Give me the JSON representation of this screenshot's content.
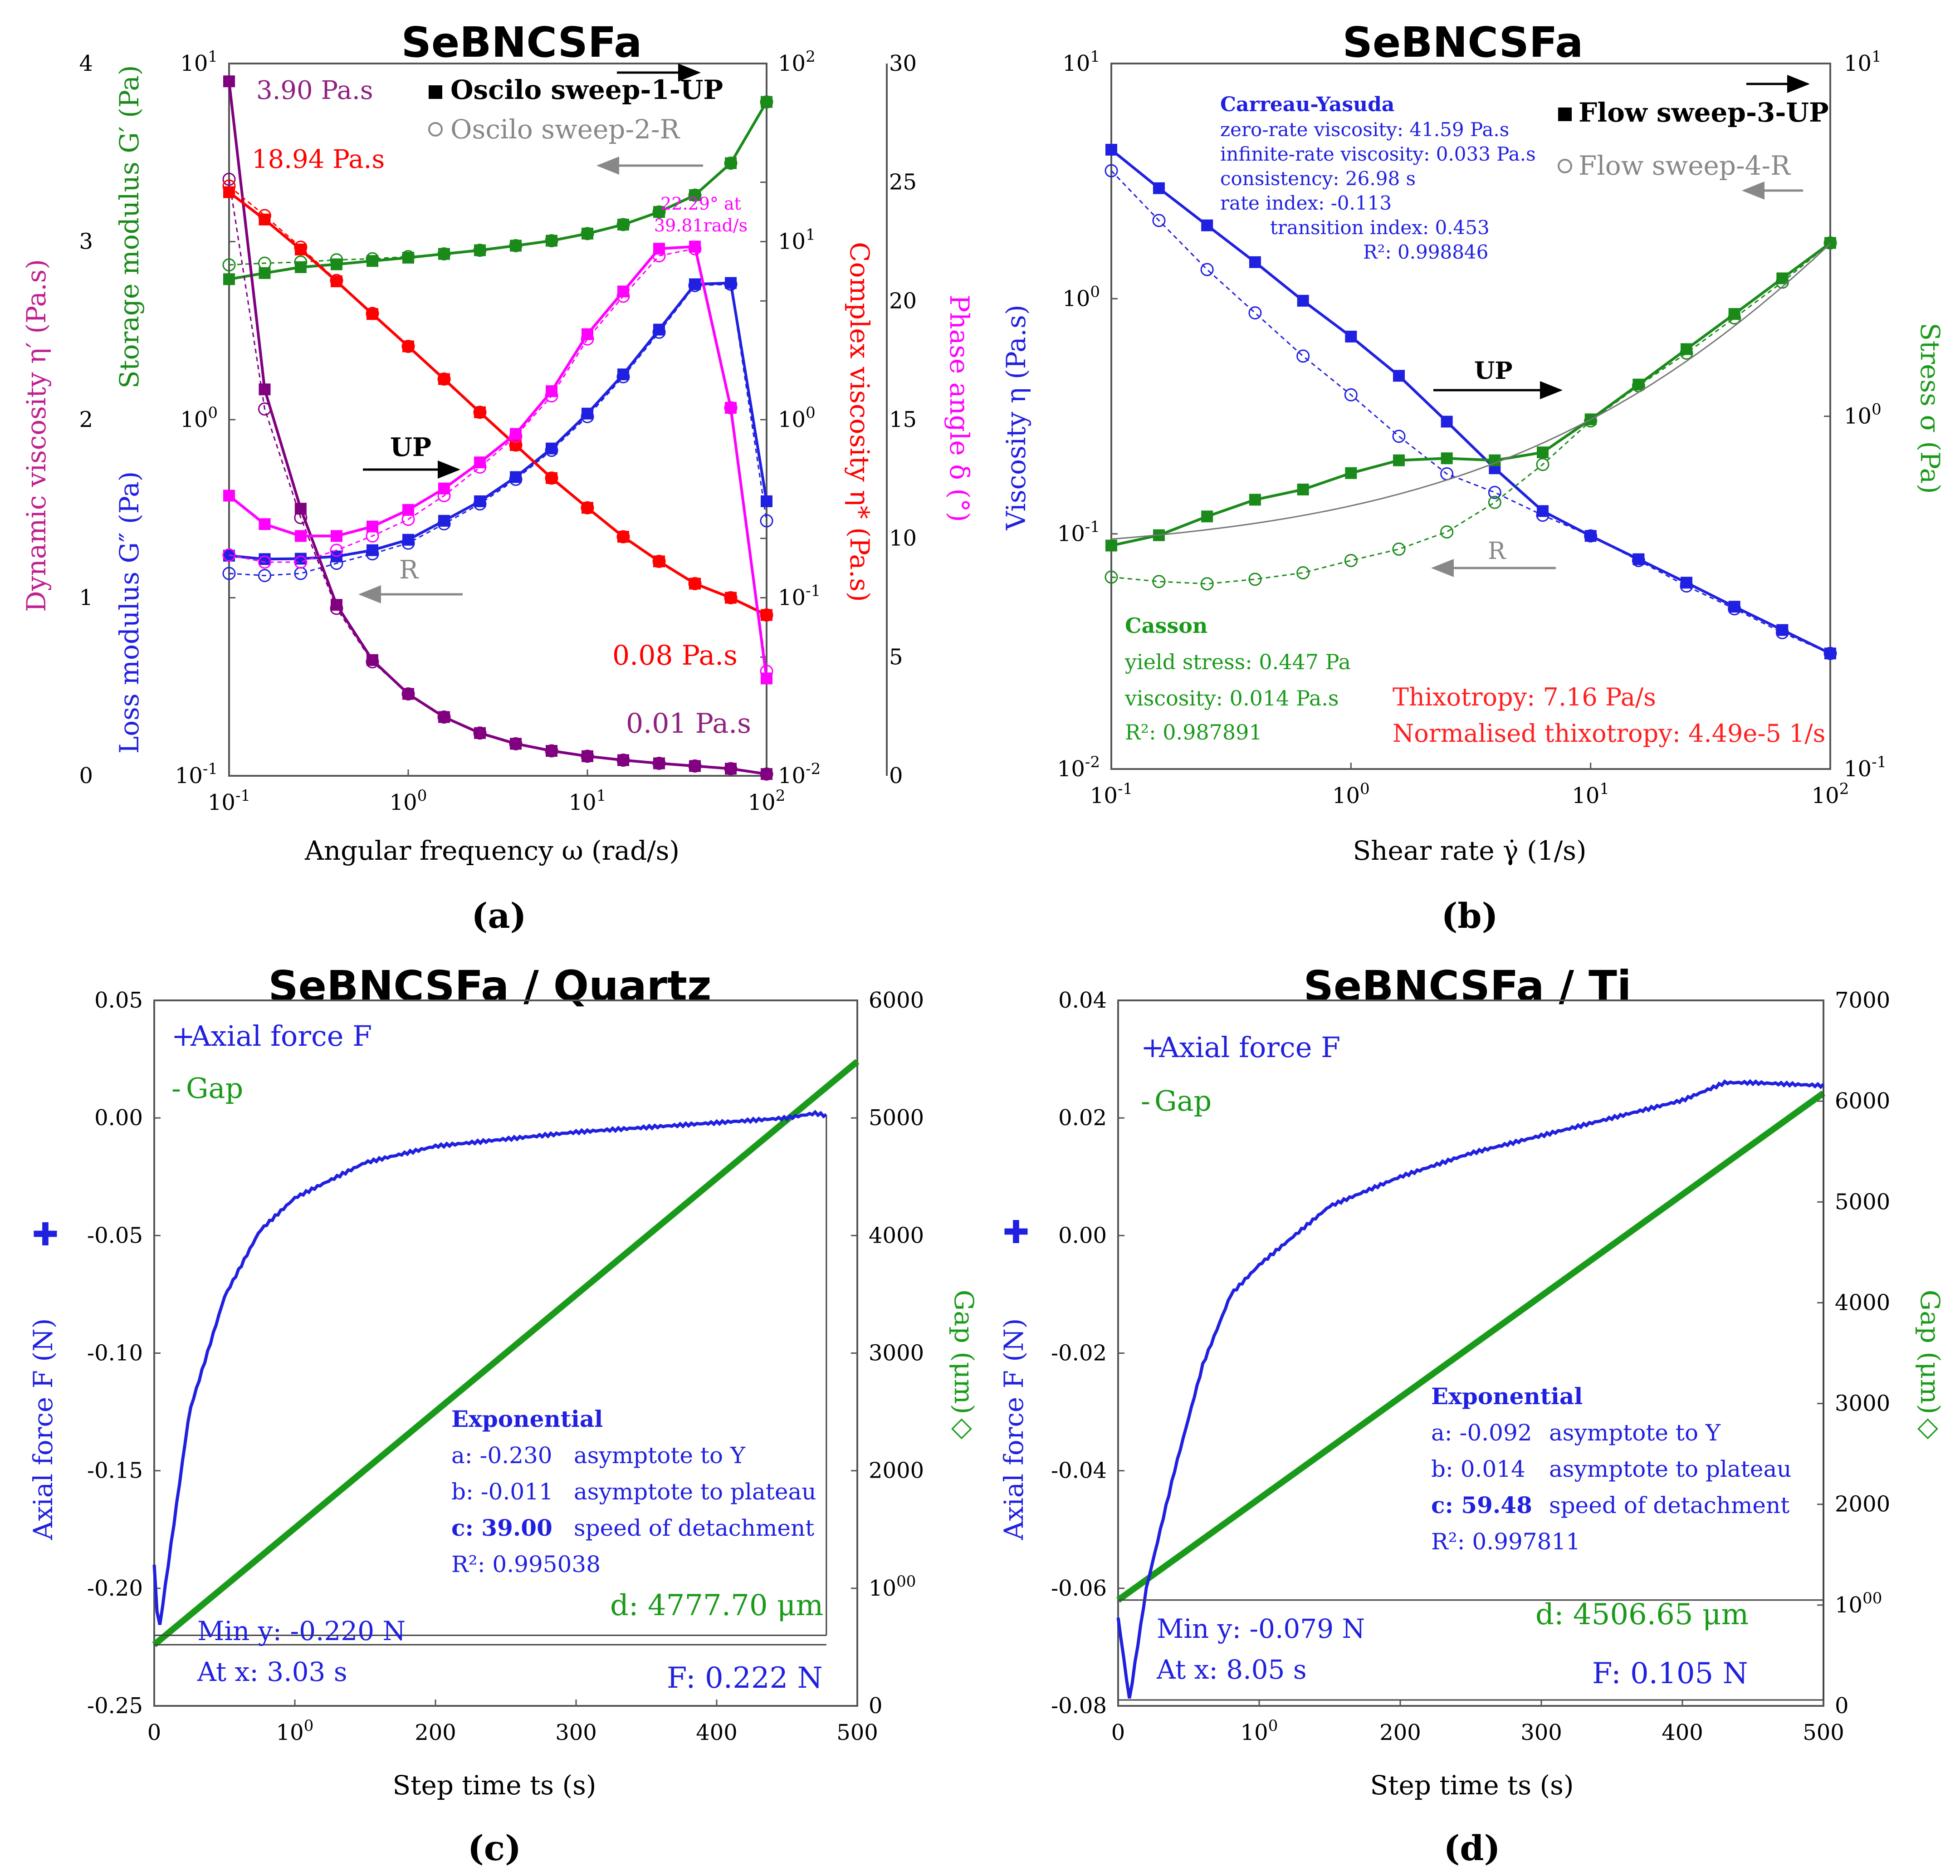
{
  "panels": [
    {
      "title": "SeBNCSFa",
      "caption": "(a)",
      "xlabel": "Angular frequency  ω  (rad/s)",
      "axes": {
        "left_outer": {
          "label": "Dynamic viscosity  η′ (Pa.s)",
          "ticks": [
            "0",
            "1",
            "2",
            "3",
            "4"
          ],
          "color": "#c0208f"
        },
        "left_inner": {
          "label_top": "Storage modulus  G′ (Pa)",
          "label_bottom": "Loss modulus  G″ (Pa)",
          "ticks": [
            "10-1",
            "100",
            "101"
          ]
        },
        "right_inner": {
          "label": "Complex viscosity  η* (Pa.s)",
          "ticks": [
            "10-2",
            "10-1",
            "100",
            "101",
            "102"
          ],
          "color": "#ff0000"
        },
        "right_outer": {
          "label": "Phase angle  δ (°)",
          "ticks": [
            "0",
            "5",
            "10",
            "15",
            "20",
            "25",
            "30"
          ],
          "color": "#ff00ff"
        },
        "x_ticks": [
          "10-1",
          "100",
          "101",
          "102"
        ]
      },
      "legend": [
        {
          "label": "Oscilo sweep-1-UP",
          "color": "#000000"
        },
        {
          "label": "Oscilo sweep-2-R",
          "color": "#888888"
        }
      ],
      "annotations": {
        "eta_prime_max": "3.90 Pa.s",
        "eta_star_max": "18.94 Pa.s",
        "phase_peak_line1": "22.29° at",
        "phase_peak_line2": "39.81rad/s",
        "up_label": "UP",
        "r_label": "R",
        "eta_star_min": "0.08 Pa.s",
        "eta_prime_min": "0.01 Pa.s"
      }
    },
    {
      "title": "SeBNCSFa",
      "caption": "(b)",
      "xlabel": "Shear rate  γ̇  (1/s)",
      "axes": {
        "left": {
          "label": "Viscosity  η  (Pa.s)",
          "ticks": [
            "10-2",
            "10-1",
            "100",
            "101"
          ],
          "color": "#2020e0"
        },
        "right": {
          "label": "Stress  σ  (Pa)",
          "ticks": [
            "10-1",
            "100",
            "101"
          ],
          "color": "#1a9a1a"
        },
        "x_ticks": [
          "10-1",
          "100",
          "101",
          "102"
        ]
      },
      "legend": [
        {
          "label": "Flow sweep-3-UP",
          "color": "#000000"
        },
        {
          "label": "Flow sweep-4-R",
          "color": "#888888"
        }
      ],
      "carreau": {
        "title": "Carreau-Yasuda",
        "lines": [
          "zero-rate viscosity: 41.59 Pa.s",
          "infinite-rate viscosity: 0.033 Pa.s",
          "consistency: 26.98 s",
          "rate index: -0.113",
          "transition index: 0.453",
          "R²: 0.998846"
        ]
      },
      "casson": {
        "title": "Casson",
        "lines": [
          "yield stress: 0.447 Pa",
          "viscosity: 0.014 Pa.s",
          "R²: 0.987891"
        ]
      },
      "thixotropy": [
        "Thixotropy: 7.16 Pa/s",
        "Normalised thixotropy: 4.49e-5 1/s"
      ],
      "up_label": "UP",
      "r_label": "R"
    },
    {
      "title": "SeBNCSFa / Quartz",
      "caption": "(c)",
      "xlabel": "Step time  ts  (s)",
      "axes": {
        "left": {
          "label": "Axial force  F  (N)",
          "ticks": [
            "-0.25",
            "-0.20",
            "-0.15",
            "-0.10",
            "-0.05",
            "0.00",
            "0.05"
          ]
        },
        "right": {
          "label": "Gap  (μm)",
          "ticks": [
            "0",
            "1000",
            "2000",
            "3000",
            "4000",
            "5000",
            "6000"
          ]
        },
        "x_ticks": [
          "0",
          "100",
          "200",
          "300",
          "400",
          "500"
        ]
      },
      "legend": [
        "Axial force F",
        "Gap"
      ],
      "fit": {
        "title": "Exponential",
        "rows": [
          {
            "key": "a: -0.230",
            "desc": "asymptote to Y"
          },
          {
            "key": "b: -0.011",
            "desc": "asymptote to plateau"
          },
          {
            "key": "c: 39.00",
            "desc": "speed of detachment"
          },
          {
            "key": "R²: 0.995038",
            "desc": ""
          }
        ]
      },
      "d_label": "d: 4777.70 μm",
      "min_y": "Min y: -0.220 N",
      "at_x": "At x: 3.03 s",
      "f_label": "F: 0.222 N"
    },
    {
      "title": "SeBNCSFa / Ti",
      "caption": "(d)",
      "xlabel": "Step time  ts  (s)",
      "axes": {
        "left": {
          "label": "Axial force  F  (N)",
          "ticks": [
            "-0.08",
            "-0.06",
            "-0.04",
            "-0.02",
            "0.00",
            "0.02",
            "0.04"
          ]
        },
        "right": {
          "label": "Gap  (μm)",
          "ticks": [
            "0",
            "1000",
            "2000",
            "3000",
            "4000",
            "5000",
            "6000",
            "7000"
          ]
        },
        "x_ticks": [
          "0",
          "100",
          "200",
          "300",
          "400",
          "500"
        ]
      },
      "legend": [
        "Axial force F",
        "Gap"
      ],
      "fit": {
        "title": "Exponential",
        "rows": [
          {
            "key": "a: -0.092",
            "desc": "asymptote to Y"
          },
          {
            "key": "b: 0.014",
            "desc": "asymptote to plateau"
          },
          {
            "key": "c: 59.48",
            "desc": "speed of detachment"
          },
          {
            "key": "R²: 0.997811",
            "desc": ""
          }
        ]
      },
      "d_label": "d: 4506.65 μm",
      "min_y": "Min y: -0.079 N",
      "at_x": "At x: 8.05 s",
      "f_label": "F: 0.105 N"
    }
  ],
  "chart_data": [
    {
      "type": "line",
      "panel": "a",
      "x_scale": "log",
      "xlim": [
        0.1,
        100
      ],
      "x": [
        0.1,
        0.158,
        0.251,
        0.398,
        0.631,
        1.0,
        1.585,
        2.512,
        3.981,
        6.31,
        10.0,
        15.85,
        25.12,
        39.81,
        63.1,
        100.0
      ],
      "series": [
        {
          "name": "G′ UP",
          "axis": "left_inner_log",
          "ylim": [
            0.1,
            10
          ],
          "color": "#1a8a1a",
          "values": [
            2.48,
            2.58,
            2.68,
            2.73,
            2.79,
            2.85,
            2.92,
            2.99,
            3.08,
            3.18,
            3.33,
            3.53,
            3.83,
            4.27,
            5.25,
            7.8
          ]
        },
        {
          "name": "G′ R",
          "axis": "left_inner_log",
          "ylim": [
            0.1,
            10
          ],
          "color": "#1a8a1a",
          "values": [
            2.72,
            2.75,
            2.77,
            2.81,
            2.83,
            2.87,
            2.92,
            2.99,
            3.08,
            3.18,
            3.33,
            3.53,
            3.83,
            4.27,
            5.25,
            7.8
          ]
        },
        {
          "name": "G″ UP",
          "axis": "left_inner_log",
          "ylim": [
            0.1,
            10
          ],
          "color": "#2020e0",
          "values": [
            0.415,
            0.406,
            0.407,
            0.413,
            0.43,
            0.46,
            0.52,
            0.59,
            0.69,
            0.83,
            1.04,
            1.34,
            1.79,
            2.4,
            2.42,
            0.59
          ]
        },
        {
          "name": "G″ R",
          "axis": "left_inner_log",
          "ylim": [
            0.1,
            10
          ],
          "color": "#2020e0",
          "values": [
            0.37,
            0.365,
            0.37,
            0.395,
            0.42,
            0.45,
            0.51,
            0.58,
            0.68,
            0.82,
            1.02,
            1.32,
            1.76,
            2.38,
            2.4,
            0.52
          ]
        },
        {
          "name": "η′ UP",
          "axis": "left_outer_lin",
          "ylim": [
            0,
            4
          ],
          "color": "#800080",
          "values": [
            3.9,
            2.17,
            1.5,
            0.96,
            0.65,
            0.46,
            0.33,
            0.24,
            0.18,
            0.14,
            0.11,
            0.088,
            0.07,
            0.055,
            0.04,
            0.01
          ]
        },
        {
          "name": "η′ R",
          "axis": "left_outer_lin",
          "ylim": [
            0,
            4
          ],
          "color": "#800080",
          "values": [
            3.35,
            2.06,
            1.45,
            0.94,
            0.64,
            0.46,
            0.33,
            0.24,
            0.18,
            0.14,
            0.11,
            0.088,
            0.07,
            0.055,
            0.04,
            0.01
          ]
        },
        {
          "name": "η* UP",
          "axis": "right_inner_log",
          "ylim": [
            0.01,
            100
          ],
          "color": "#ff0000",
          "values": [
            18.94,
            13.3,
            9.03,
            5.98,
            3.92,
            2.58,
            1.69,
            1.1,
            0.72,
            0.47,
            0.32,
            0.22,
            0.16,
            0.12,
            0.1,
            0.08
          ]
        },
        {
          "name": "η* R",
          "axis": "right_inner_log",
          "ylim": [
            0.01,
            100
          ],
          "color": "#ff0000",
          "values": [
            20.5,
            14.0,
            9.3,
            6.05,
            3.95,
            2.58,
            1.69,
            1.1,
            0.72,
            0.47,
            0.32,
            0.22,
            0.16,
            0.12,
            0.1,
            0.08
          ]
        },
        {
          "name": "δ UP",
          "axis": "right_outer_lin",
          "ylim": [
            0,
            30
          ],
          "color": "#ff00ff",
          "values": [
            11.8,
            10.6,
            10.1,
            10.1,
            10.5,
            11.2,
            12.1,
            13.2,
            14.4,
            16.2,
            18.6,
            20.4,
            22.2,
            22.29,
            15.5,
            4.1
          ]
        },
        {
          "name": "δ R",
          "axis": "right_outer_lin",
          "ylim": [
            0,
            30
          ],
          "color": "#ff00ff",
          "values": [
            9.3,
            9.0,
            9.0,
            9.5,
            10.1,
            10.8,
            11.8,
            13.0,
            14.3,
            16.0,
            18.4,
            20.2,
            21.9,
            22.2,
            15.5,
            4.4
          ]
        }
      ]
    },
    {
      "type": "line",
      "panel": "b",
      "x_scale": "log",
      "xlim": [
        0.1,
        100
      ],
      "x": [
        0.1,
        0.158,
        0.251,
        0.398,
        0.631,
        1.0,
        1.585,
        2.512,
        3.981,
        6.31,
        10.0,
        15.85,
        25.12,
        39.81,
        63.1,
        100.0
      ],
      "series": [
        {
          "name": "η UP",
          "axis": "left_log",
          "ylim": [
            0.01,
            10
          ],
          "color": "#2020e0",
          "values": [
            4.3,
            2.95,
            2.05,
            1.43,
            0.98,
            0.69,
            0.47,
            0.3,
            0.19,
            0.125,
            0.098,
            0.078,
            0.062,
            0.049,
            0.039,
            0.031
          ]
        },
        {
          "name": "η R",
          "axis": "left_log",
          "ylim": [
            0.01,
            10
          ],
          "color": "#2020e0",
          "values": [
            3.5,
            2.15,
            1.33,
            0.87,
            0.57,
            0.39,
            0.26,
            0.18,
            0.15,
            0.12,
            0.098,
            0.077,
            0.06,
            0.048,
            0.038,
            0.031
          ]
        },
        {
          "name": "σ UP",
          "axis": "right_log",
          "ylim": [
            0.1,
            10
          ],
          "color": "#1a8a1a",
          "values": [
            0.43,
            0.46,
            0.52,
            0.58,
            0.62,
            0.69,
            0.75,
            0.76,
            0.75,
            0.79,
            0.98,
            1.23,
            1.55,
            1.95,
            2.46,
            3.1
          ]
        },
        {
          "name": "σ R",
          "axis": "right_log",
          "ylim": [
            0.1,
            10
          ],
          "color": "#1a8a1a",
          "values": [
            0.35,
            0.34,
            0.335,
            0.345,
            0.36,
            0.39,
            0.42,
            0.47,
            0.57,
            0.73,
            0.97,
            1.22,
            1.51,
            1.9,
            2.4,
            3.1
          ]
        }
      ]
    },
    {
      "type": "line",
      "panel": "c",
      "xlim": [
        0,
        500
      ],
      "series": [
        {
          "name": "Axial force F",
          "axis": "left",
          "ylim": [
            -0.25,
            0.05
          ],
          "color": "#2020e0",
          "model": "exponential",
          "x": [
            0,
            3.03,
            25,
            50,
            75,
            100,
            150,
            200,
            250,
            300,
            350,
            400,
            450,
            470,
            478
          ],
          "values": [
            -0.19,
            -0.22,
            -0.125,
            -0.076,
            -0.048,
            -0.034,
            -0.019,
            -0.012,
            -0.009,
            -0.006,
            -0.004,
            -0.002,
            0.0,
            0.002,
            0.001
          ]
        },
        {
          "name": "Gap",
          "axis": "right",
          "ylim": [
            0,
            6000
          ],
          "color": "#1a9a1a",
          "x": [
            0,
            500
          ],
          "values": [
            520,
            5480
          ]
        }
      ]
    },
    {
      "type": "line",
      "panel": "d",
      "xlim": [
        0,
        500
      ],
      "series": [
        {
          "name": "Axial force F",
          "axis": "left",
          "ylim": [
            -0.08,
            0.04
          ],
          "color": "#2020e0",
          "model": "exponential",
          "x": [
            0,
            8.05,
            20,
            40,
            60,
            80,
            100,
            150,
            200,
            250,
            300,
            350,
            400,
            430,
            450,
            500
          ],
          "values": [
            -0.065,
            -0.079,
            -0.06,
            -0.04,
            -0.022,
            -0.01,
            -0.005,
            0.005,
            0.01,
            0.014,
            0.017,
            0.02,
            0.023,
            0.026,
            0.026,
            0.0255
          ]
        },
        {
          "name": "Gap",
          "axis": "right",
          "ylim": [
            0,
            7000
          ],
          "color": "#1a9a1a",
          "x": [
            0,
            500
          ],
          "values": [
            1050,
            6080
          ]
        }
      ]
    }
  ]
}
